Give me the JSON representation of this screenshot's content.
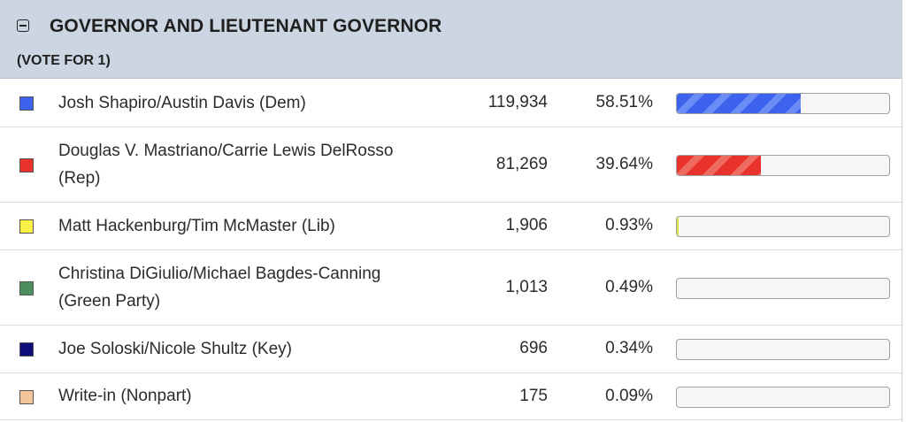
{
  "contest": {
    "title": "GOVERNOR AND LIEUTENANT GOVERNOR",
    "subtitle": "(VOTE FOR 1)"
  },
  "candidates": [
    {
      "name": "Josh Shapiro/Austin Davis (Dem)",
      "votes": "119,934",
      "percent": "58.51%",
      "share": 58.51,
      "color": "#3d63ee",
      "stripe": "#6b8cf5",
      "swatch": "#3d63ee"
    },
    {
      "name": "Douglas V. Mastriano/Carrie Lewis DelRosso (Rep)",
      "votes": "81,269",
      "percent": "39.64%",
      "share": 39.64,
      "color": "#e8322b",
      "stripe": "#f06b5f",
      "swatch": "#e8322b"
    },
    {
      "name": "Matt Hackenburg/Tim McMaster (Lib)",
      "votes": "1,906",
      "percent": "0.93%",
      "share": 0.93,
      "color": "#e6e23a",
      "stripe": "#f4f07a",
      "swatch": "#f6f144"
    },
    {
      "name": "Christina DiGiulio/Michael Bagdes-Canning (Green Party)",
      "votes": "1,013",
      "percent": "0.49%",
      "share": 0.49,
      "color": "#4c8f5c",
      "stripe": "#76ad82",
      "swatch": "#4c8f5c"
    },
    {
      "name": "Joe Soloski/Nicole Shultz (Key)",
      "votes": "696",
      "percent": "0.34%",
      "share": 0.34,
      "color": "#0c0d7a",
      "stripe": "#2a2c9a",
      "swatch": "#0c0d7a"
    },
    {
      "name": "Write-in (Nonpart)",
      "votes": "175",
      "percent": "0.09%",
      "share": 0.09,
      "color": "#f4c69a",
      "stripe": "#f8dcc0",
      "swatch": "#f4c69a"
    }
  ]
}
